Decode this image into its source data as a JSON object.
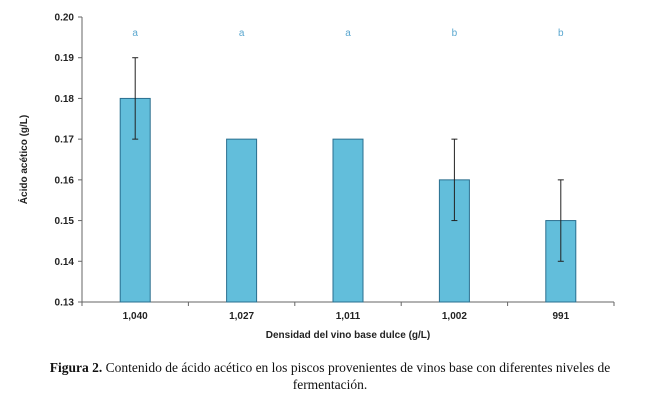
{
  "chart_data": {
    "type": "bar",
    "categories": [
      "1,040",
      "1,027",
      "1,011",
      "1,002",
      "991"
    ],
    "values": [
      0.18,
      0.17,
      0.17,
      0.16,
      0.15
    ],
    "error": [
      0.01,
      0,
      0,
      0.01,
      0.01
    ],
    "significance_letters": [
      "a",
      "a",
      "a",
      "b",
      "b"
    ],
    "xlabel": "Densidad del vino base dulce (g/L)",
    "ylabel": "Ácido acético (g/L)",
    "ylim": [
      0.13,
      0.2
    ],
    "yticks": [
      "0.13",
      "0.14",
      "0.15",
      "0.16",
      "0.17",
      "0.18",
      "0.19",
      "0.20"
    ],
    "grid": false,
    "bar_color": "#62bedb",
    "bar_stroke": "#2a6f8f",
    "letter_color": "#5aa7cf"
  },
  "caption": {
    "label": "Figura 2.",
    "text": " Contenido de ácido acético en los piscos provenientes de vinos base con diferentes niveles de fermentación."
  }
}
